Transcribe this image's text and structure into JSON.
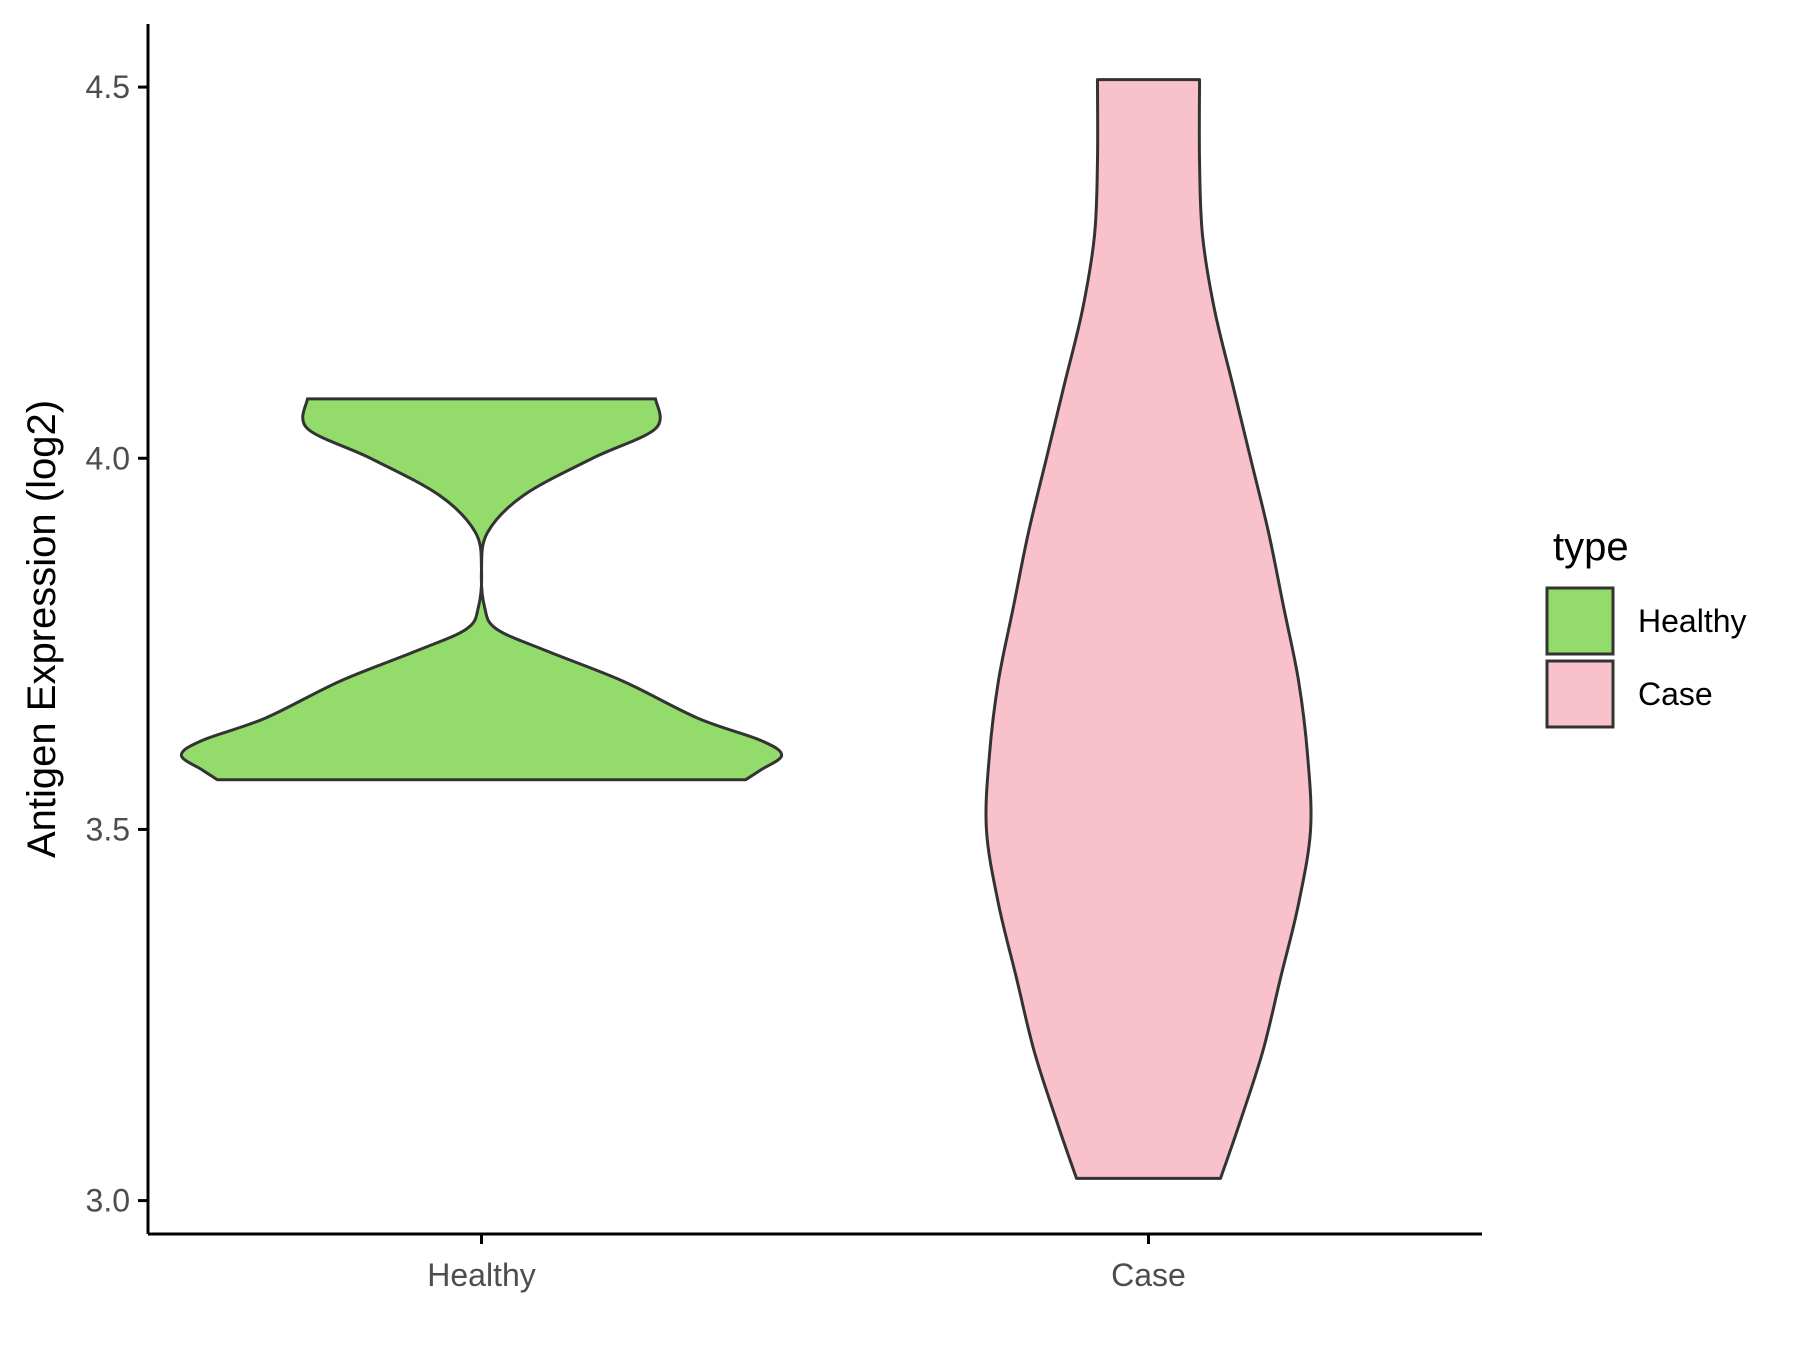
{
  "chart_data": {
    "type": "violin",
    "title": "",
    "xlabel": "",
    "ylabel": "Antigen Expression (log2)",
    "ylim": [
      2.955,
      4.585
    ],
    "y_ticks": [
      "3.0",
      "3.5",
      "4.0",
      "4.5"
    ],
    "y_tick_values": [
      3.0,
      3.5,
      4.0,
      4.5
    ],
    "categories": [
      "Healthy",
      "Case"
    ],
    "grid": false,
    "legend": {
      "title": "type",
      "placement": "right",
      "entries": [
        "Healthy",
        "Case"
      ]
    },
    "series": [
      {
        "name": "Healthy",
        "color": "#93DC6B",
        "y_min": 3.567,
        "y_max": 4.08,
        "density_profile": [
          [
            3.567,
            0.88
          ],
          [
            3.58,
            0.93
          ],
          [
            3.6,
            1.0
          ],
          [
            3.62,
            0.93
          ],
          [
            3.65,
            0.72
          ],
          [
            3.7,
            0.47
          ],
          [
            3.74,
            0.22
          ],
          [
            3.77,
            0.05
          ],
          [
            3.8,
            0.01
          ],
          [
            3.85,
            0.0
          ],
          [
            3.9,
            0.02
          ],
          [
            3.95,
            0.14
          ],
          [
            4.0,
            0.37
          ],
          [
            4.04,
            0.58
          ],
          [
            4.08,
            0.58
          ]
        ]
      },
      {
        "name": "Case",
        "color": "#F8C1CC",
        "y_min": 3.03,
        "y_max": 4.51,
        "density_profile": [
          [
            3.03,
            0.24
          ],
          [
            3.1,
            0.3
          ],
          [
            3.2,
            0.38
          ],
          [
            3.3,
            0.44
          ],
          [
            3.4,
            0.5
          ],
          [
            3.5,
            0.54
          ],
          [
            3.6,
            0.53
          ],
          [
            3.7,
            0.5
          ],
          [
            3.8,
            0.45
          ],
          [
            3.9,
            0.4
          ],
          [
            4.0,
            0.34
          ],
          [
            4.1,
            0.28
          ],
          [
            4.2,
            0.22
          ],
          [
            4.3,
            0.18
          ],
          [
            4.4,
            0.17
          ],
          [
            4.51,
            0.17
          ]
        ]
      }
    ]
  }
}
